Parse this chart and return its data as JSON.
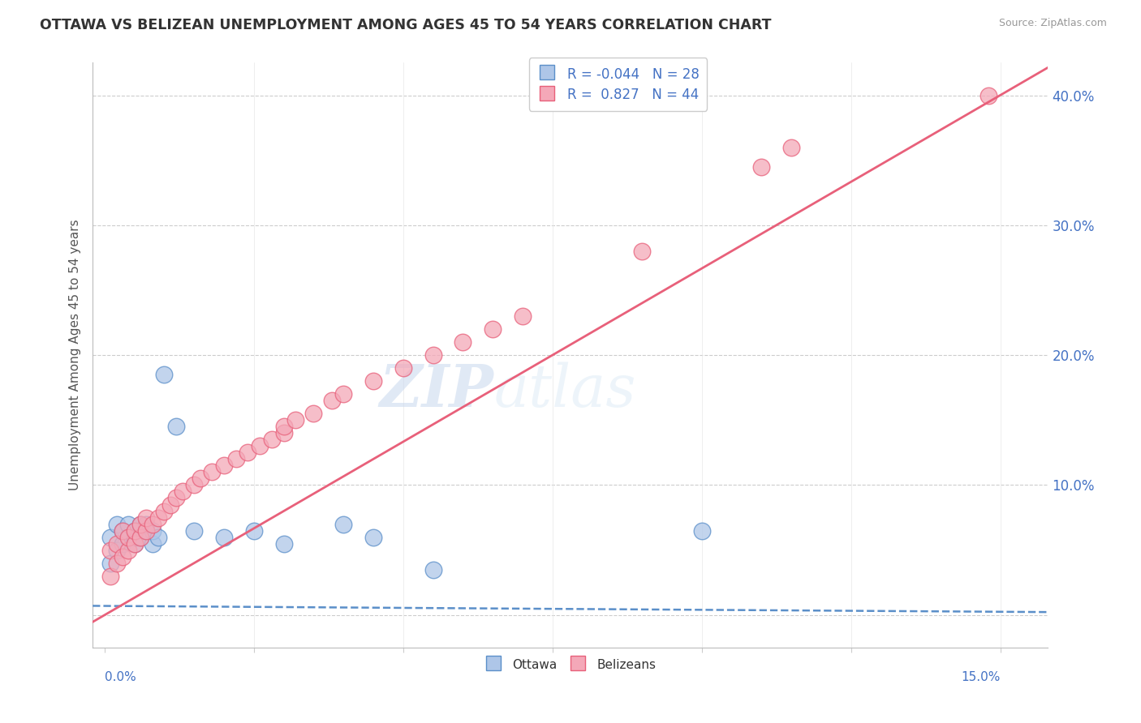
{
  "title": "OTTAWA VS BELIZEAN UNEMPLOYMENT AMONG AGES 45 TO 54 YEARS CORRELATION CHART",
  "source": "Source: ZipAtlas.com",
  "ylabel": "Unemployment Among Ages 45 to 54 years",
  "xlim": [
    -0.002,
    0.158
  ],
  "ylim": [
    -0.025,
    0.425
  ],
  "ottawa_color": "#aec6e8",
  "belizean_color": "#f4a8b8",
  "ottawa_line_color": "#5b8fc9",
  "belizean_line_color": "#e8607a",
  "ottawa_R": -0.044,
  "ottawa_N": 28,
  "belizean_R": 0.827,
  "belizean_N": 44,
  "watermark_top": "ZIP",
  "watermark_bottom": "atlas",
  "legend_ottawa_label": "Ottawa",
  "legend_belizean_label": "Belizeans",
  "background_color": "#ffffff",
  "grid_color": "#cccccc",
  "ytick_vals": [
    0.0,
    0.1,
    0.2,
    0.3,
    0.4
  ],
  "ytick_labels": [
    "",
    "10.0%",
    "20.0%",
    "30.0%",
    "40.0%"
  ],
  "ottawa_line_intercept": 0.007,
  "ottawa_line_slope": -0.03,
  "belizean_line_intercept": 0.0,
  "belizean_line_slope": 2.667,
  "ottawa_pts_x": [
    0.001,
    0.001,
    0.002,
    0.002,
    0.003,
    0.003,
    0.004,
    0.004,
    0.005,
    0.005,
    0.005,
    0.006,
    0.006,
    0.007,
    0.007,
    0.008,
    0.008,
    0.009,
    0.01,
    0.012,
    0.015,
    0.02,
    0.025,
    0.03,
    0.04,
    0.1,
    0.045,
    0.055
  ],
  "ottawa_pts_y": [
    0.04,
    0.06,
    0.05,
    0.07,
    0.055,
    0.065,
    0.06,
    0.07,
    0.055,
    0.06,
    0.065,
    0.07,
    0.06,
    0.065,
    0.07,
    0.055,
    0.065,
    0.06,
    0.185,
    0.145,
    0.065,
    0.06,
    0.065,
    0.055,
    0.07,
    0.065,
    0.06,
    0.035
  ],
  "belizean_pts_x": [
    0.001,
    0.001,
    0.002,
    0.002,
    0.003,
    0.003,
    0.004,
    0.004,
    0.005,
    0.005,
    0.006,
    0.006,
    0.007,
    0.007,
    0.008,
    0.009,
    0.01,
    0.011,
    0.012,
    0.013,
    0.015,
    0.016,
    0.018,
    0.02,
    0.022,
    0.024,
    0.026,
    0.028,
    0.03,
    0.03,
    0.032,
    0.035,
    0.038,
    0.04,
    0.045,
    0.05,
    0.055,
    0.06,
    0.065,
    0.07,
    0.09,
    0.11,
    0.115,
    0.148
  ],
  "belizean_pts_y": [
    0.03,
    0.05,
    0.04,
    0.055,
    0.045,
    0.065,
    0.05,
    0.06,
    0.055,
    0.065,
    0.06,
    0.07,
    0.065,
    0.075,
    0.07,
    0.075,
    0.08,
    0.085,
    0.09,
    0.095,
    0.1,
    0.105,
    0.11,
    0.115,
    0.12,
    0.125,
    0.13,
    0.135,
    0.14,
    0.145,
    0.15,
    0.155,
    0.165,
    0.17,
    0.18,
    0.19,
    0.2,
    0.21,
    0.22,
    0.23,
    0.28,
    0.345,
    0.36,
    0.4
  ]
}
